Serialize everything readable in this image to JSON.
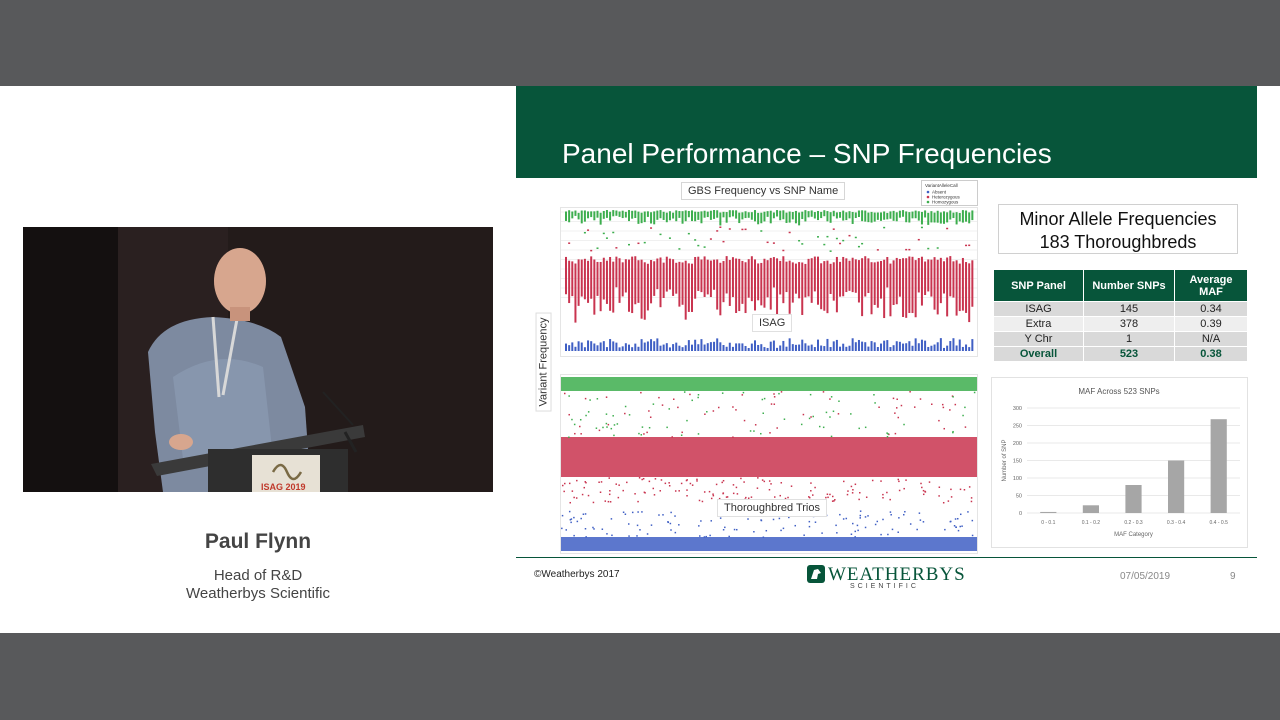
{
  "speaker": {
    "name": "Paul Flynn",
    "role_line1": "Head of R&D",
    "role_line2": "Weatherbys Scientific",
    "podium_sign": "ISAG 2019"
  },
  "slide": {
    "title": "Panel Performance – SNP Frequencies",
    "scatter": {
      "title": "GBS Frequency vs SNP Name",
      "y_label": "Variant Frequency",
      "top_panel_label": "ISAG",
      "bottom_panel_label": "Thoroughbred Trios",
      "legend_title": "VariantAlleleCall",
      "legend_items": [
        "Absent",
        "Heterozygous",
        "Homozygous"
      ],
      "colors": {
        "homozygous": "#3dae4e",
        "heterozygous": "#c9344f",
        "absent": "#3f5fc4"
      }
    },
    "maf_box": {
      "line1": "Minor Allele Frequencies",
      "line2": "183 Thoroughbreds"
    },
    "table": {
      "headers": [
        "SNP Panel",
        "Number SNPs",
        "Average MAF"
      ],
      "rows": [
        [
          "ISAG",
          "145",
          "0.34"
        ],
        [
          "Extra",
          "378",
          "0.39"
        ],
        [
          "Y Chr",
          "1",
          "N/A"
        ],
        [
          "Overall",
          "523",
          "0.38"
        ]
      ]
    },
    "chart_data": {
      "type": "bar",
      "title": "MAF Across 523 SNPs",
      "xlabel": "MAF Category",
      "ylabel": "Number of SNP",
      "categories": [
        "0 - 0.1",
        "0.1 - 0.2",
        "0.2 - 0.3",
        "0.3 - 0.4",
        "0.4 - 0.5"
      ],
      "values": [
        3,
        22,
        80,
        150,
        268
      ],
      "ylim": [
        0,
        300
      ],
      "yticks": [
        0,
        50,
        100,
        150,
        200,
        250,
        300
      ],
      "grid": true,
      "bar_color": "#a6a6a6"
    },
    "footer": {
      "copyright": "©Weatherbys 2017",
      "brand": "WEATHERBYS",
      "brand_sub": "SCIENTIFIC",
      "date": "07/05/2019",
      "page": "9"
    }
  }
}
